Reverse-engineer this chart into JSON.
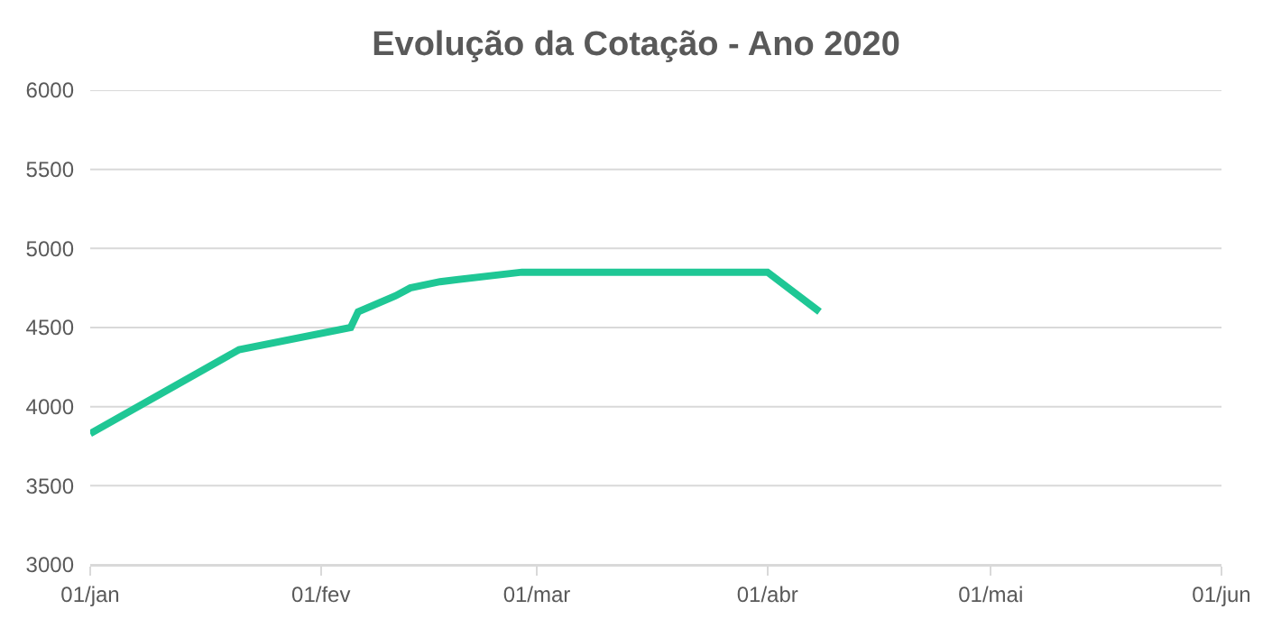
{
  "chart_data": {
    "type": "line",
    "title": "Evolução da Cotação - Ano 2020",
    "x": [
      "2020-01-01",
      "2020-01-21",
      "2020-02-05",
      "2020-02-06",
      "2020-02-11",
      "2020-02-13",
      "2020-02-17",
      "2020-02-28",
      "2020-04-01",
      "2020-04-08"
    ],
    "series": [
      {
        "color": "#1fc795",
        "values": [
          3830,
          4360,
          4500,
          4600,
          4700,
          4750,
          4790,
          4850,
          4850,
          4600
        ]
      }
    ],
    "xlim": [
      "2020-01-01",
      "2020-06-01"
    ],
    "xticks": [
      {
        "value": "2020-01-01",
        "label": "01/jan"
      },
      {
        "value": "2020-02-01",
        "label": "01/fev"
      },
      {
        "value": "2020-03-01",
        "label": "01/mar"
      },
      {
        "value": "2020-04-01",
        "label": "01/abr"
      },
      {
        "value": "2020-05-01",
        "label": "01/mai"
      },
      {
        "value": "2020-06-01",
        "label": "01/jun"
      }
    ],
    "ylim": [
      3000,
      6000
    ],
    "yticks": [
      3000,
      3500,
      4000,
      4500,
      5000,
      5500,
      6000
    ],
    "grid": "y",
    "marker": "none",
    "line_style": "solid"
  }
}
